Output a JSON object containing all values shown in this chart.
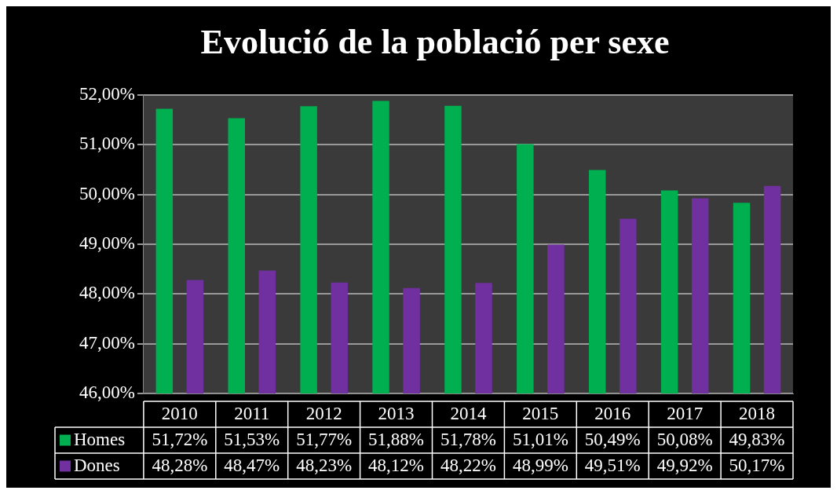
{
  "chart_data": {
    "type": "bar",
    "title": "Evolució de la població per sexe",
    "categories": [
      "2010",
      "2011",
      "2012",
      "2013",
      "2014",
      "2015",
      "2016",
      "2017",
      "2018"
    ],
    "series": [
      {
        "name": "Homes",
        "color": "#00b050",
        "values": [
          51.72,
          51.53,
          51.77,
          51.88,
          51.78,
          51.01,
          50.49,
          50.08,
          49.83
        ],
        "value_labels": [
          "51,72%",
          "51,53%",
          "51,77%",
          "51,88%",
          "51,78%",
          "51,01%",
          "50,49%",
          "50,08%",
          "49,83%"
        ]
      },
      {
        "name": "Dones",
        "color": "#7030a0",
        "values": [
          48.28,
          48.47,
          48.23,
          48.12,
          48.22,
          48.99,
          49.51,
          49.92,
          50.17
        ],
        "value_labels": [
          "48,28%",
          "48,47%",
          "48,23%",
          "48,12%",
          "48,22%",
          "48,99%",
          "49,51%",
          "49,92%",
          "50,17%"
        ]
      }
    ],
    "ylim": [
      46,
      52
    ],
    "yticks": [
      {
        "value": 46,
        "label": "46,00%"
      },
      {
        "value": 47,
        "label": "47,00%"
      },
      {
        "value": 48,
        "label": "48,00%"
      },
      {
        "value": 49,
        "label": "49,00%"
      },
      {
        "value": 50,
        "label": "50,00%"
      },
      {
        "value": 51,
        "label": "51,00%"
      },
      {
        "value": 52,
        "label": "52,00%"
      }
    ],
    "grid": "y",
    "legend": "bottom"
  }
}
